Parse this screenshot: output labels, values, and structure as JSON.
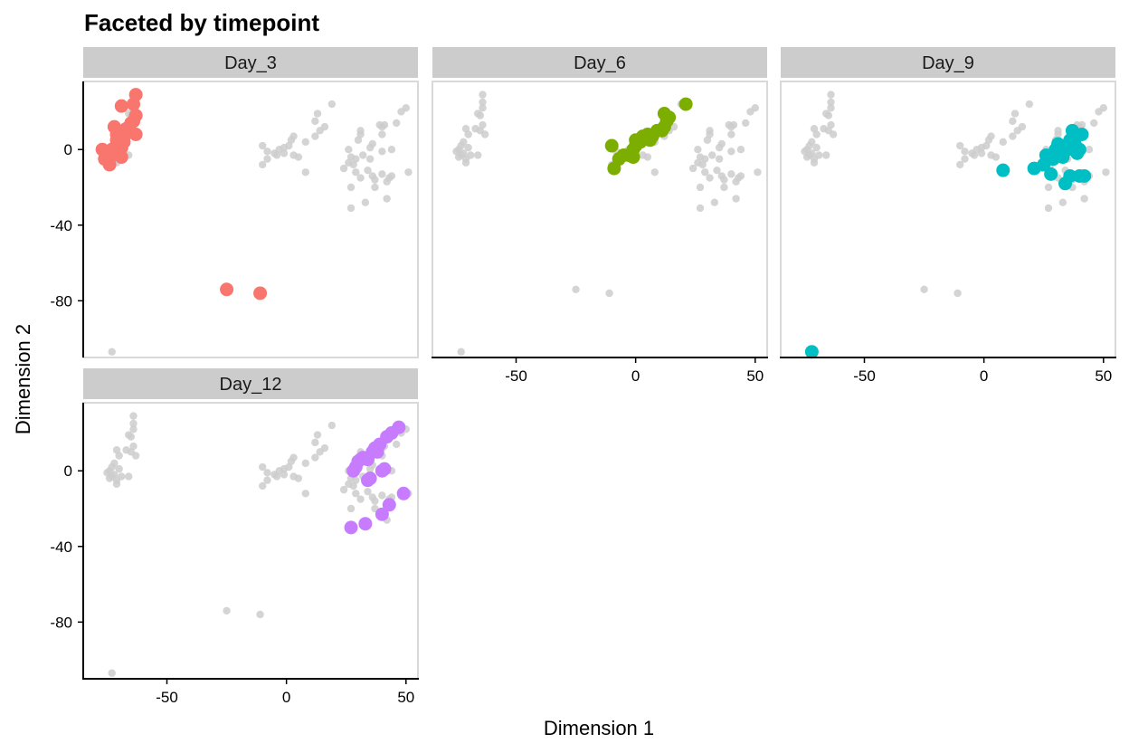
{
  "chart_data": {
    "type": "scatter",
    "title": "Faceted by timepoint",
    "xlabel": "Dimension 1",
    "ylabel": "Dimension 2",
    "xlim": [
      -85,
      55
    ],
    "ylim": [
      -110,
      36
    ],
    "x_ticks": [
      {
        "v": -50,
        "label": "-50"
      },
      {
        "v": 0,
        "label": "0"
      },
      {
        "v": 50,
        "label": "50"
      }
    ],
    "y_ticks": [
      {
        "v": 0,
        "label": "0"
      },
      {
        "v": -40,
        "label": "-40"
      },
      {
        "v": -80,
        "label": "-80"
      }
    ],
    "background_color": "#cccccc",
    "background_points": [
      [
        -74,
        0
      ],
      [
        -72,
        -2
      ],
      [
        -73,
        2
      ],
      [
        -71,
        -5
      ],
      [
        -75,
        -1
      ],
      [
        -70,
        1
      ],
      [
        -72,
        4
      ],
      [
        -73,
        -3
      ],
      [
        -69,
        -3
      ],
      [
        -71,
        -7
      ],
      [
        -74,
        -4
      ],
      [
        -66,
        -3
      ],
      [
        -71,
        11
      ],
      [
        -70,
        8
      ],
      [
        -67,
        11
      ],
      [
        -65,
        10
      ],
      [
        -64,
        13
      ],
      [
        -63,
        8
      ],
      [
        -65,
        18
      ],
      [
        -64,
        22
      ],
      [
        -64,
        29
      ],
      [
        -66,
        19
      ],
      [
        -64,
        25
      ],
      [
        -10,
        2
      ],
      [
        -8,
        -1
      ],
      [
        -10,
        -8
      ],
      [
        -8,
        -5
      ],
      [
        -5,
        -2
      ],
      [
        -4,
        -3
      ],
      [
        -3,
        0
      ],
      [
        -1,
        1
      ],
      [
        -1,
        -2
      ],
      [
        1,
        2
      ],
      [
        2,
        5
      ],
      [
        3,
        7
      ],
      [
        3,
        -3
      ],
      [
        5,
        -4
      ],
      [
        8,
        -12
      ],
      [
        8,
        4
      ],
      [
        12,
        7
      ],
      [
        12,
        15
      ],
      [
        13,
        19
      ],
      [
        14,
        10
      ],
      [
        16,
        12
      ],
      [
        19,
        24
      ],
      [
        24,
        -10
      ],
      [
        26,
        0
      ],
      [
        26,
        -7
      ],
      [
        27,
        -20
      ],
      [
        27,
        -31
      ],
      [
        27,
        -4
      ],
      [
        28,
        -8
      ],
      [
        29,
        -5
      ],
      [
        29,
        -12
      ],
      [
        31,
        -15
      ],
      [
        30,
        5
      ],
      [
        31,
        8
      ],
      [
        31,
        10
      ],
      [
        32,
        -3
      ],
      [
        33,
        -28
      ],
      [
        34,
        -11
      ],
      [
        35,
        -5
      ],
      [
        36,
        -14
      ],
      [
        35,
        1
      ],
      [
        36,
        3
      ],
      [
        37,
        -16
      ],
      [
        37,
        -20
      ],
      [
        39,
        13
      ],
      [
        40,
        -1
      ],
      [
        40,
        -13
      ],
      [
        40,
        8
      ],
      [
        40,
        12
      ],
      [
        41,
        13
      ],
      [
        42,
        -17
      ],
      [
        42,
        -26
      ],
      [
        43,
        -15
      ],
      [
        44,
        -14
      ],
      [
        44,
        0
      ],
      [
        46,
        14
      ],
      [
        48,
        20
      ],
      [
        50,
        22
      ],
      [
        51,
        -12
      ],
      [
        -25,
        -74
      ],
      [
        -11,
        -76
      ],
      [
        -73,
        -107
      ]
    ],
    "panels": [
      {
        "label": "Day_3",
        "color": "#f8766d",
        "points": [
          [
            -77,
            0
          ],
          [
            -75,
            -3
          ],
          [
            -73,
            0
          ],
          [
            -71,
            5
          ],
          [
            -73,
            -3
          ],
          [
            -76,
            -5
          ],
          [
            -74,
            -8
          ],
          [
            -72,
            0
          ],
          [
            -70,
            3
          ],
          [
            -68,
            4
          ],
          [
            -69,
            1
          ],
          [
            -69,
            -4
          ],
          [
            -71,
            8
          ],
          [
            -68,
            7
          ],
          [
            -66,
            9
          ],
          [
            -63,
            8
          ],
          [
            -65,
            14
          ],
          [
            -64,
            15
          ],
          [
            -63,
            18
          ],
          [
            -67,
            11
          ],
          [
            -72,
            12
          ],
          [
            -64,
            24
          ],
          [
            -63,
            29
          ],
          [
            -69,
            23
          ],
          [
            -25,
            -74
          ],
          [
            -11,
            -76
          ]
        ]
      },
      {
        "label": "Day_6",
        "color": "#7cae00",
        "points": [
          [
            -10,
            2
          ],
          [
            -9,
            -10
          ],
          [
            -7,
            -5
          ],
          [
            -5,
            -3
          ],
          [
            -3,
            -3
          ],
          [
            -1,
            0
          ],
          [
            0,
            2
          ],
          [
            0,
            5
          ],
          [
            -1,
            -4
          ],
          [
            2,
            4
          ],
          [
            3,
            7
          ],
          [
            5,
            8
          ],
          [
            6,
            5
          ],
          [
            7,
            7
          ],
          [
            9,
            10
          ],
          [
            11,
            10
          ],
          [
            12,
            12
          ],
          [
            13,
            15
          ],
          [
            14,
            17
          ],
          [
            12,
            19
          ],
          [
            21,
            24
          ]
        ]
      },
      {
        "label": "Day_9",
        "color": "#00bfc4",
        "points": [
          [
            8,
            -11
          ],
          [
            21,
            -10
          ],
          [
            25,
            -8
          ],
          [
            26,
            -3
          ],
          [
            28,
            -13
          ],
          [
            29,
            -5
          ],
          [
            30,
            -2
          ],
          [
            30,
            0
          ],
          [
            31,
            3
          ],
          [
            33,
            -4
          ],
          [
            34,
            -18
          ],
          [
            35,
            0
          ],
          [
            36,
            -14
          ],
          [
            36,
            5
          ],
          [
            37,
            10
          ],
          [
            38,
            3
          ],
          [
            39,
            -2
          ],
          [
            40,
            -14
          ],
          [
            40,
            0
          ],
          [
            41,
            8
          ],
          [
            42,
            -14
          ],
          [
            -72,
            -107
          ]
        ]
      },
      {
        "label": "Day_12",
        "color": "#c77cff",
        "points": [
          [
            27,
            -30
          ],
          [
            28,
            0
          ],
          [
            29,
            2
          ],
          [
            30,
            5
          ],
          [
            31,
            6
          ],
          [
            32,
            7
          ],
          [
            33,
            -28
          ],
          [
            34,
            6
          ],
          [
            34,
            -5
          ],
          [
            35,
            -4
          ],
          [
            36,
            10
          ],
          [
            37,
            12
          ],
          [
            38,
            10
          ],
          [
            39,
            14
          ],
          [
            40,
            -23
          ],
          [
            40,
            0
          ],
          [
            41,
            1
          ],
          [
            42,
            18
          ],
          [
            43,
            -18
          ],
          [
            44,
            20
          ],
          [
            47,
            23
          ],
          [
            49,
            -12
          ]
        ]
      }
    ]
  }
}
